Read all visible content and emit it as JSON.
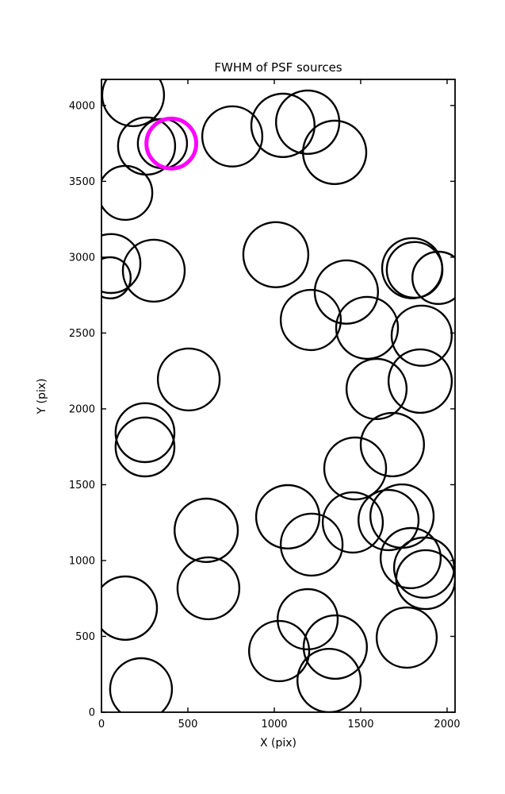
{
  "chart_data": {
    "type": "scatter",
    "title": "FWHM of PSF sources",
    "xlabel": "X (pix)",
    "ylabel": "Y (pix)",
    "xlim": [
      0,
      2046
    ],
    "ylim": [
      0,
      4172
    ],
    "xticks": [
      0,
      500,
      1000,
      1500,
      2000
    ],
    "yticks": [
      0,
      500,
      1000,
      1500,
      2000,
      2500,
      3000,
      3500,
      4000
    ],
    "grid": false,
    "legend": "none",
    "colors": {
      "source_circle": "#000000",
      "highlighted_circle": "#ff00ff",
      "axes": "#000000",
      "background": "#ffffff"
    },
    "radius_units": "x-axis pixel units",
    "sources": [
      {
        "x": 183,
        "y": 4068,
        "r": 179
      },
      {
        "x": 261,
        "y": 3733,
        "r": 165
      },
      {
        "x": 353,
        "y": 3749,
        "r": 142
      },
      {
        "x": 138,
        "y": 3424,
        "r": 156
      },
      {
        "x": 55,
        "y": 2958,
        "r": 170
      },
      {
        "x": 50,
        "y": 2864,
        "r": 119
      },
      {
        "x": 303,
        "y": 2911,
        "r": 179
      },
      {
        "x": 757,
        "y": 3796,
        "r": 174
      },
      {
        "x": 1050,
        "y": 3869,
        "r": 183
      },
      {
        "x": 1193,
        "y": 3890,
        "r": 183
      },
      {
        "x": 1349,
        "y": 3691,
        "r": 183
      },
      {
        "x": 1009,
        "y": 3016,
        "r": 188
      },
      {
        "x": 1417,
        "y": 2770,
        "r": 183
      },
      {
        "x": 1211,
        "y": 2586,
        "r": 174
      },
      {
        "x": 1537,
        "y": 2534,
        "r": 179
      },
      {
        "x": 1798,
        "y": 2927,
        "r": 174
      },
      {
        "x": 1812,
        "y": 2916,
        "r": 161
      },
      {
        "x": 1950,
        "y": 2864,
        "r": 151
      },
      {
        "x": 1853,
        "y": 2482,
        "r": 174
      },
      {
        "x": 505,
        "y": 2194,
        "r": 179
      },
      {
        "x": 252,
        "y": 1843,
        "r": 170
      },
      {
        "x": 252,
        "y": 1749,
        "r": 170
      },
      {
        "x": 1592,
        "y": 2131,
        "r": 174
      },
      {
        "x": 1844,
        "y": 2183,
        "r": 183
      },
      {
        "x": 1683,
        "y": 1764,
        "r": 183
      },
      {
        "x": 1468,
        "y": 1607,
        "r": 179
      },
      {
        "x": 1078,
        "y": 1288,
        "r": 183
      },
      {
        "x": 1216,
        "y": 1105,
        "r": 179
      },
      {
        "x": 1454,
        "y": 1251,
        "r": 174
      },
      {
        "x": 1661,
        "y": 1267,
        "r": 174
      },
      {
        "x": 1739,
        "y": 1293,
        "r": 183
      },
      {
        "x": 1789,
        "y": 1016,
        "r": 174
      },
      {
        "x": 1867,
        "y": 953,
        "r": 174
      },
      {
        "x": 1876,
        "y": 874,
        "r": 170
      },
      {
        "x": 606,
        "y": 1199,
        "r": 183
      },
      {
        "x": 619,
        "y": 817,
        "r": 179
      },
      {
        "x": 138,
        "y": 686,
        "r": 183
      },
      {
        "x": 229,
        "y": 152,
        "r": 179
      },
      {
        "x": 1028,
        "y": 403,
        "r": 174
      },
      {
        "x": 1193,
        "y": 613,
        "r": 174
      },
      {
        "x": 1353,
        "y": 429,
        "r": 183
      },
      {
        "x": 1317,
        "y": 209,
        "r": 183
      },
      {
        "x": 1766,
        "y": 492,
        "r": 174
      }
    ],
    "highlighted_source": {
      "x": 404,
      "y": 3749,
      "r": 144
    }
  }
}
